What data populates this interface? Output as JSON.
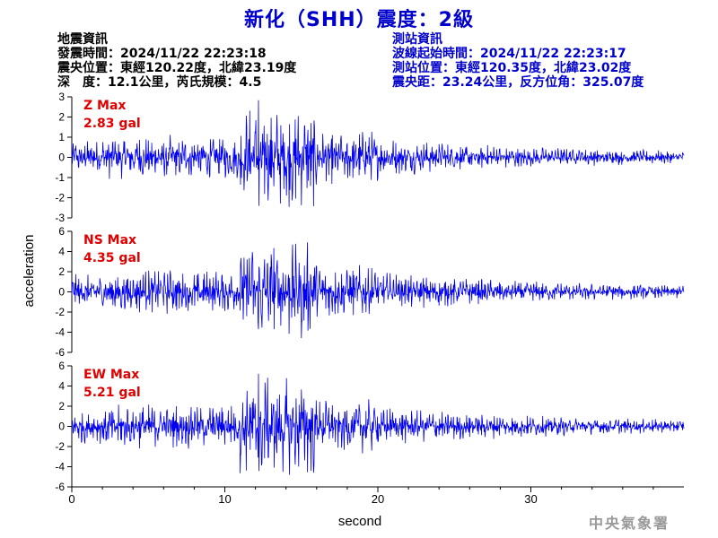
{
  "title": "新化（SHH）震度：2級",
  "quake_info": {
    "heading": "地震資訊",
    "time": "發震時間：2024/11/22 22:23:18",
    "epicenter": "震央位置：東經120.22度，北緯23.19度",
    "depth_mag": "深　度：12.1公里，芮氏規模：4.5"
  },
  "station_info": {
    "heading": "測站資訊",
    "wave_start": "波線起始時間：2024/11/22 22:23:17",
    "location": "測站位置：東經120.35度，北緯23.02度",
    "distance": "震央距：23.24公里，反方位角：325.07度"
  },
  "agency": "中央氣象署",
  "colors": {
    "trace": "#0000ee",
    "title": "#0000cc",
    "max_label": "#e00000",
    "agency": "#999999"
  },
  "chart_data": {
    "type": "line",
    "xlabel": "second",
    "ylabel": "acceleration",
    "xlim": [
      0,
      40
    ],
    "x_ticks": [
      0,
      10,
      20,
      30
    ],
    "duration": 40,
    "panels": [
      {
        "name": "Z",
        "max_label": "Z Max",
        "max_value": "2.83 gal",
        "peak": 2.83,
        "ylim": [
          -3,
          3
        ],
        "y_ticks": [
          -3,
          -2,
          -1,
          0,
          1,
          2,
          3
        ]
      },
      {
        "name": "NS",
        "max_label": "NS Max",
        "max_value": "4.35 gal",
        "peak": 4.35,
        "ylim": [
          -6,
          6
        ],
        "y_ticks": [
          -6,
          -4,
          -2,
          0,
          2,
          4,
          6
        ]
      },
      {
        "name": "EW",
        "max_label": "EW Max",
        "max_value": "5.21 gal",
        "peak": 5.21,
        "ylim": [
          -6,
          6
        ],
        "y_ticks": [
          -6,
          -4,
          -2,
          0,
          2,
          4,
          6
        ]
      }
    ]
  }
}
